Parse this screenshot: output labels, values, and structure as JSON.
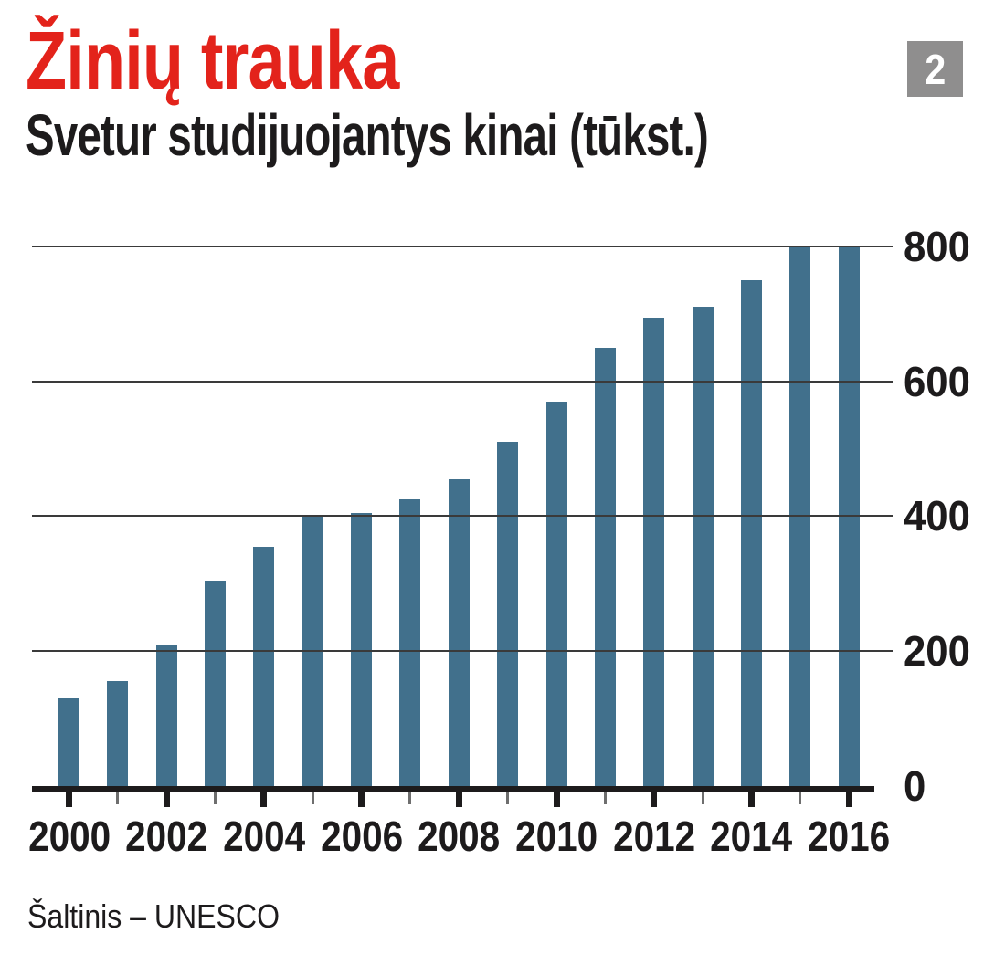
{
  "page": {
    "title": "Žinių trauka",
    "subtitle": "Svetur studijuojantys kinai (tūkst.)",
    "badge": "2",
    "source": "Šaltinis – UNESCO"
  },
  "colors": {
    "title_red": "#e3231b",
    "bar_blue": "#41708c",
    "badge_gray": "#8f8e8e",
    "text_dark": "#1d1b1c"
  },
  "chart_data": {
    "type": "bar",
    "title": "Žinių trauka",
    "subtitle": "Svetur studijuojantys kinai (tūkst.)",
    "source": "Šaltinis – UNESCO",
    "unit": "tūkst.",
    "categories": [
      "2000",
      "2001",
      "2002",
      "2003",
      "2004",
      "2005",
      "2006",
      "2007",
      "2008",
      "2009",
      "2010",
      "2011",
      "2012",
      "2013",
      "2014",
      "2015",
      "2016"
    ],
    "values": [
      130,
      155,
      210,
      305,
      355,
      400,
      405,
      425,
      455,
      510,
      570,
      650,
      695,
      710,
      750,
      800,
      800
    ],
    "xlabel": "",
    "ylabel": "",
    "ylim": [
      0,
      800
    ],
    "yticks": [
      0,
      200,
      400,
      600,
      800
    ],
    "xticks_labeled": [
      "2000",
      "2002",
      "2004",
      "2006",
      "2008",
      "2010",
      "2012",
      "2014",
      "2016"
    ],
    "grid": "horizontal",
    "legend": "none",
    "bar_color": "#41708c",
    "y_axis_side": "right"
  }
}
